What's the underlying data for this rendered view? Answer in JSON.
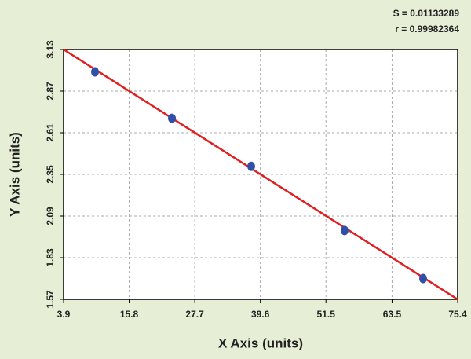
{
  "chart_data": {
    "type": "scatter",
    "x_label": "X Axis (units)",
    "y_label": "Y Axis (units)",
    "annotations": [
      "S = 0.01133289",
      "r = 0.99982364"
    ],
    "x": [
      9.6,
      23.56,
      37.94,
      54.89,
      69.13
    ],
    "values": [
      2.99,
      2.7,
      2.4,
      2.0,
      1.7
    ],
    "color": "#2f4fa8",
    "fit_line": {
      "x": [
        3.9,
        75.4
      ],
      "values": [
        3.13,
        1.57
      ],
      "color": "#e02020"
    },
    "xlim": [
      3.9,
      75.4
    ],
    "xticks": [
      3.9,
      15.8,
      27.7,
      39.6,
      51.5,
      63.5,
      75.4
    ],
    "ylim": [
      1.57,
      3.13
    ],
    "yticks": [
      1.57,
      1.83,
      2.09,
      2.35,
      2.61,
      2.87,
      3.13
    ],
    "grid": true
  }
}
